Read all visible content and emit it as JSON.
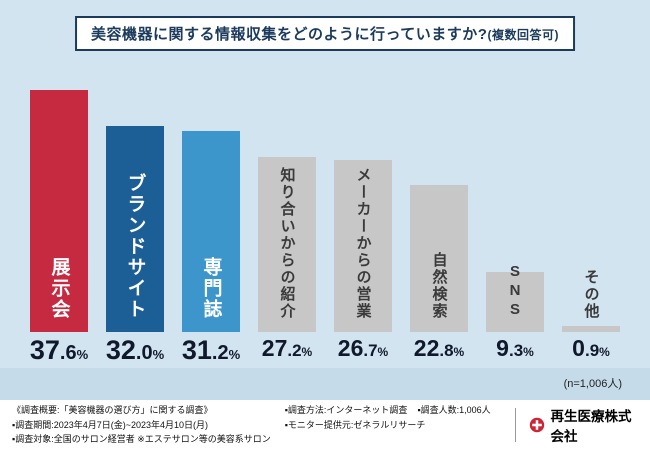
{
  "title": {
    "main": "美容機器に関する情報収集をどのように行っていますか?",
    "note": "(複数回答可)"
  },
  "chart_data": {
    "type": "bar",
    "title": "美容機器に関する情報収集をどのように行っていますか?(複数回答可)",
    "categories": [
      "展示会",
      "ブランドサイト",
      "専門誌",
      "知り合いからの紹介",
      "メーカーからの営業",
      "自然検索",
      "SNS",
      "その他"
    ],
    "values": [
      37.6,
      32.0,
      31.2,
      27.2,
      26.7,
      22.8,
      9.3,
      0.9
    ],
    "unit": "%",
    "ylim": [
      0,
      40
    ],
    "grid": false,
    "legend": "none",
    "n_label": "(n=1,006人)",
    "bar_colors": [
      "#c62a41",
      "#1c5e96",
      "#3c96cc",
      "#c7c7c7",
      "#c7c7c7",
      "#c7c7c7",
      "#c7c7c7",
      "#c7c7c7"
    ],
    "label_colors": [
      "#ffffff",
      "#ffffff",
      "#ffffff",
      "#3a3a3a",
      "#3a3a3a",
      "#3a3a3a",
      "#3a3a3a",
      "#3a3a3a"
    ]
  },
  "footer": {
    "overview": "《調査概要:「美容機器の選び方」に関する調査》",
    "period": "▪調査期間:2023年4月7日(金)~2023年4月10日(月)",
    "target": "▪調査対象:全国のサロン経営者 ※エステサロン等の美容系サロン",
    "method": "▪調査方法:インターネット調査",
    "count": "▪調査人数:1,006人",
    "monitor": "▪モニター提供元:ゼネラルリサーチ"
  },
  "company": {
    "name": "再生医療株式会社"
  },
  "colors": {
    "background": "#d2e4f0",
    "accent_red": "#c62a41",
    "title_navy": "#1b3a5c"
  }
}
